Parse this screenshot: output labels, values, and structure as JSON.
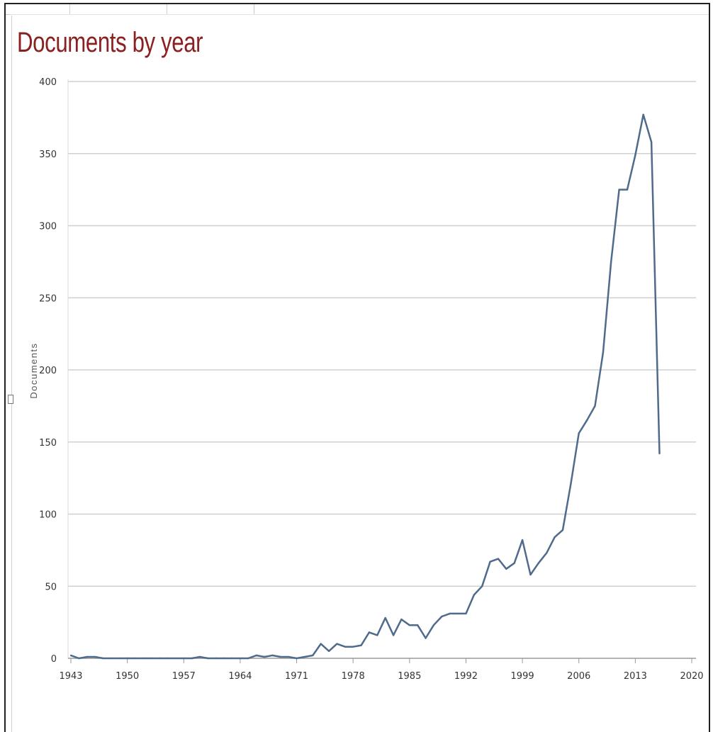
{
  "chart_data": {
    "type": "line",
    "title": "Documents by year",
    "xlabel": "",
    "ylabel": "Documents",
    "xlim": [
      1943,
      2020
    ],
    "ylim": [
      0,
      400
    ],
    "x_ticks": [
      1943,
      1950,
      1957,
      1964,
      1971,
      1978,
      1985,
      1992,
      1999,
      2006,
      2013,
      2020
    ],
    "y_ticks": [
      0,
      50,
      100,
      150,
      200,
      250,
      300,
      350,
      400
    ],
    "grid": true,
    "line_color": "#4f6b8c",
    "series": [
      {
        "x": [
          1943,
          1944,
          1945,
          1946,
          1947,
          1948,
          1949,
          1950,
          1951,
          1952,
          1953,
          1954,
          1955,
          1956,
          1957,
          1958,
          1959,
          1960,
          1961,
          1962,
          1963,
          1964,
          1965,
          1966,
          1967,
          1968,
          1969,
          1970,
          1971,
          1972,
          1973,
          1974,
          1975,
          1976,
          1977,
          1978,
          1979,
          1980,
          1981,
          1982,
          1983,
          1984,
          1985,
          1986,
          1987,
          1988,
          1989,
          1990,
          1991,
          1992,
          1993,
          1994,
          1995,
          1996,
          1997,
          1998,
          1999,
          2000,
          2001,
          2002,
          2003,
          2004,
          2005,
          2006,
          2007,
          2008,
          2009,
          2010,
          2011,
          2012,
          2013,
          2014,
          2015,
          2016
        ],
        "values": [
          2,
          0,
          1,
          1,
          0,
          0,
          0,
          0,
          0,
          0,
          0,
          0,
          0,
          0,
          0,
          0,
          1,
          0,
          0,
          0,
          0,
          0,
          0,
          2,
          1,
          2,
          1,
          1,
          0,
          1,
          2,
          10,
          5,
          10,
          8,
          8,
          9,
          18,
          16,
          28,
          16,
          27,
          23,
          23,
          14,
          23,
          29,
          31,
          31,
          31,
          44,
          50,
          67,
          69,
          62,
          66,
          82,
          58,
          66,
          73,
          84,
          89,
          121,
          156,
          165,
          175,
          212,
          275,
          325,
          325,
          349,
          377,
          358,
          142
        ]
      }
    ]
  },
  "colors": {
    "title": "#8b2020",
    "grid": "#d0d0d0",
    "axis": "#9a9a9a"
  }
}
